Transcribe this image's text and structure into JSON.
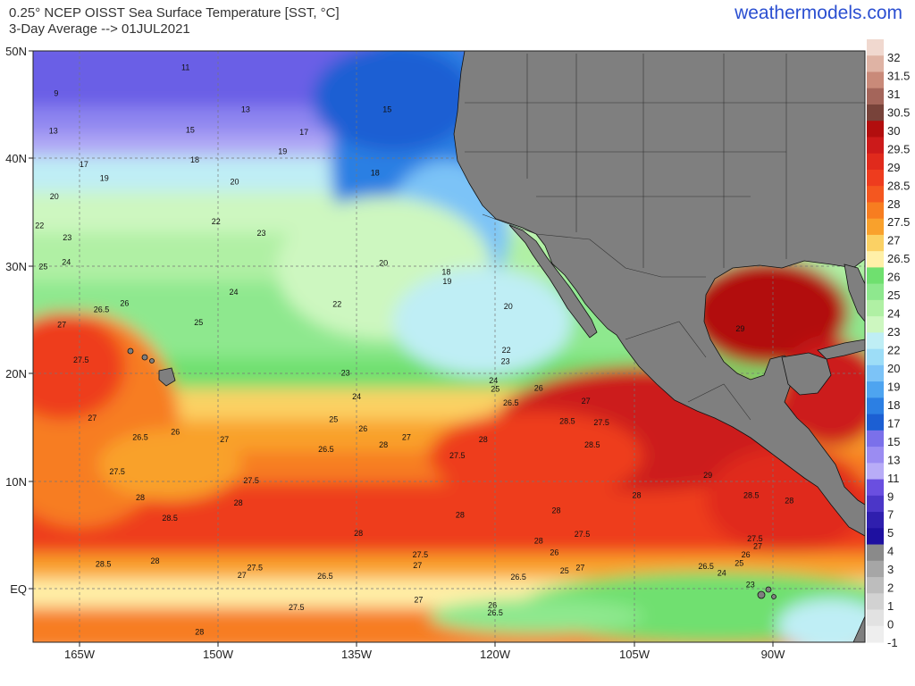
{
  "header": {
    "title_line1": "0.25° NCEP OISST Sea Surface Temperature [SST, °C]",
    "title_line2": "3-Day Average --> 01JUL2021",
    "site": "weathermodels.com"
  },
  "map": {
    "lat_labels": [
      "50N",
      "40N",
      "30N",
      "20N",
      "10N",
      "EQ"
    ],
    "lon_labels": [
      "165W",
      "150W",
      "135W",
      "120W",
      "105W",
      "90W"
    ],
    "land_color": "#7f7f7f",
    "contour_labels": [
      {
        "t": "11",
        "lon": -153.5,
        "lat": 48.2
      },
      {
        "t": "9",
        "lon": -167.5,
        "lat": 45.8
      },
      {
        "t": "13",
        "lon": -147,
        "lat": 44.3
      },
      {
        "t": "15",
        "lon": -131.7,
        "lat": 44.3
      },
      {
        "t": "13",
        "lon": -167.8,
        "lat": 42.3
      },
      {
        "t": "15",
        "lon": -153,
        "lat": 42.4
      },
      {
        "t": "17",
        "lon": -140.7,
        "lat": 42.2
      },
      {
        "t": "17",
        "lon": -164.5,
        "lat": 39.2
      },
      {
        "t": "18",
        "lon": -152.5,
        "lat": 39.6
      },
      {
        "t": "19",
        "lon": -143,
        "lat": 40.4
      },
      {
        "t": "19",
        "lon": -162.3,
        "lat": 37.9
      },
      {
        "t": "18",
        "lon": -133,
        "lat": 38.4
      },
      {
        "t": "20",
        "lon": -148.2,
        "lat": 37.6
      },
      {
        "t": "20",
        "lon": -167.7,
        "lat": 36.2
      },
      {
        "t": "22",
        "lon": -150.2,
        "lat": 33.9
      },
      {
        "t": "22",
        "lon": -169.3,
        "lat": 33.5
      },
      {
        "t": "23",
        "lon": -145.3,
        "lat": 32.8
      },
      {
        "t": "23",
        "lon": -166.3,
        "lat": 32.4
      },
      {
        "t": "25",
        "lon": -168.9,
        "lat": 29.7
      },
      {
        "t": "24",
        "lon": -166.4,
        "lat": 30.1
      },
      {
        "t": "20",
        "lon": -132.1,
        "lat": 30
      },
      {
        "t": "18",
        "lon": -125.3,
        "lat": 29.2
      },
      {
        "t": "19",
        "lon": -125.2,
        "lat": 28.3
      },
      {
        "t": "24",
        "lon": -148.3,
        "lat": 27.3
      },
      {
        "t": "26",
        "lon": -160.1,
        "lat": 26.3
      },
      {
        "t": "22",
        "lon": -137.1,
        "lat": 26.2
      },
      {
        "t": "20",
        "lon": -118.6,
        "lat": 26
      },
      {
        "t": "26.5",
        "lon": -162.6,
        "lat": 25.7
      },
      {
        "t": "25",
        "lon": -152.1,
        "lat": 24.5
      },
      {
        "t": "27",
        "lon": -166.9,
        "lat": 24.3
      },
      {
        "t": "22",
        "lon": -118.8,
        "lat": 21.9
      },
      {
        "t": "23",
        "lon": -118.9,
        "lat": 20.9
      },
      {
        "t": "27.5",
        "lon": -164.8,
        "lat": 21
      },
      {
        "t": "23",
        "lon": -136.2,
        "lat": 19.8
      },
      {
        "t": "24",
        "lon": -120.2,
        "lat": 19.1
      },
      {
        "t": "25",
        "lon": -120,
        "lat": 18.3
      },
      {
        "t": "26",
        "lon": -115.3,
        "lat": 18.4
      },
      {
        "t": "24",
        "lon": -135,
        "lat": 17.6
      },
      {
        "t": "26.5",
        "lon": -118.3,
        "lat": 17
      },
      {
        "t": "27",
        "lon": -110.2,
        "lat": 17.2
      },
      {
        "t": "27",
        "lon": -163.6,
        "lat": 15.6
      },
      {
        "t": "25",
        "lon": -137.5,
        "lat": 15.5
      },
      {
        "t": "28.5",
        "lon": -112.2,
        "lat": 15.3
      },
      {
        "t": "27.5",
        "lon": -108.5,
        "lat": 15.2
      },
      {
        "t": "26",
        "lon": -134.3,
        "lat": 14.6
      },
      {
        "t": "26",
        "lon": -154.6,
        "lat": 14.3
      },
      {
        "t": "26.5",
        "lon": -158.4,
        "lat": 13.8
      },
      {
        "t": "27",
        "lon": -149.3,
        "lat": 13.6
      },
      {
        "t": "27",
        "lon": -129.6,
        "lat": 13.8
      },
      {
        "t": "28",
        "lon": -121.3,
        "lat": 13.6
      },
      {
        "t": "28",
        "lon": -132.1,
        "lat": 13.1
      },
      {
        "t": "28.5",
        "lon": -109.5,
        "lat": 13.1
      },
      {
        "t": "26.5",
        "lon": -138.3,
        "lat": 12.7
      },
      {
        "t": "27.5",
        "lon": -124.1,
        "lat": 12.1
      },
      {
        "t": "27.5",
        "lon": -160.9,
        "lat": 10.6
      },
      {
        "t": "27.5",
        "lon": -146.4,
        "lat": 9.8
      },
      {
        "t": "29",
        "lon": -97,
        "lat": 10.3
      },
      {
        "t": "28",
        "lon": -158.4,
        "lat": 8.2
      },
      {
        "t": "28.5",
        "lon": -92.3,
        "lat": 8.4
      },
      {
        "t": "28",
        "lon": -104.7,
        "lat": 8.4
      },
      {
        "t": "28",
        "lon": -147.8,
        "lat": 7.7
      },
      {
        "t": "28",
        "lon": -113.4,
        "lat": 7
      },
      {
        "t": "28",
        "lon": -123.8,
        "lat": 6.6
      },
      {
        "t": "28.5",
        "lon": -155.2,
        "lat": 6.3
      },
      {
        "t": "28",
        "lon": -88.2,
        "lat": 7.9
      },
      {
        "t": "27.5",
        "lon": -110.6,
        "lat": 4.8
      },
      {
        "t": "28",
        "lon": -134.8,
        "lat": 4.9
      },
      {
        "t": "28",
        "lon": -115.3,
        "lat": 4.2
      },
      {
        "t": "27.5",
        "lon": -91.9,
        "lat": 4.4
      },
      {
        "t": "27",
        "lon": -91.6,
        "lat": 3.7
      },
      {
        "t": "26",
        "lon": -113.6,
        "lat": 3.1
      },
      {
        "t": "26",
        "lon": -92.9,
        "lat": 2.9
      },
      {
        "t": "28.5",
        "lon": -162.4,
        "lat": 2
      },
      {
        "t": "28",
        "lon": -156.8,
        "lat": 2.3
      },
      {
        "t": "27.5",
        "lon": -128.1,
        "lat": 2.9
      },
      {
        "t": "27",
        "lon": -128.4,
        "lat": 1.9
      },
      {
        "t": "25",
        "lon": -112.5,
        "lat": 1.4
      },
      {
        "t": "27",
        "lon": -110.8,
        "lat": 1.7
      },
      {
        "t": "26.5",
        "lon": -97.2,
        "lat": 1.8
      },
      {
        "t": "25",
        "lon": -93.6,
        "lat": 2.1
      },
      {
        "t": "27.5",
        "lon": -146,
        "lat": 1.7
      },
      {
        "t": "27",
        "lon": -147.4,
        "lat": 1
      },
      {
        "t": "26.5",
        "lon": -138.4,
        "lat": 0.9
      },
      {
        "t": "26.5",
        "lon": -117.5,
        "lat": 0.8
      },
      {
        "t": "24",
        "lon": -95.5,
        "lat": 1.2
      },
      {
        "t": "23",
        "lon": -92.4,
        "lat": 0.1
      },
      {
        "t": "27",
        "lon": -128.3,
        "lat": -1.3
      },
      {
        "t": "27.5",
        "lon": -141.5,
        "lat": -2
      },
      {
        "t": "26",
        "lon": -120.3,
        "lat": -1.8
      },
      {
        "t": "26.5",
        "lon": -120,
        "lat": -2.5
      },
      {
        "t": "29",
        "lon": -93.5,
        "lat": 23.9
      },
      {
        "t": "28",
        "lon": -152,
        "lat": -4.3
      }
    ]
  },
  "colorbar": {
    "ticks": [
      "32",
      "31.5",
      "31",
      "30.5",
      "30",
      "29.5",
      "29",
      "28.5",
      "28",
      "27.5",
      "27",
      "26.5",
      "26",
      "25",
      "24",
      "23",
      "22",
      "20",
      "19",
      "18",
      "17",
      "15",
      "13",
      "11",
      "9",
      "7",
      "5",
      "4",
      "3",
      "2",
      "1",
      "0",
      "-1"
    ],
    "colors": [
      "#f0d8cf",
      "#dfb3a4",
      "#c98a79",
      "#a4655a",
      "#78433a",
      "#b20e0e",
      "#cc1a1a",
      "#e02a1c",
      "#ee3c1e",
      "#f4571f",
      "#f77d20",
      "#f9a12c",
      "#fbd164",
      "#fff0a8",
      "#6fe06f",
      "#8ee88e",
      "#b0f0a4",
      "#cdf7c0",
      "#bfeef5",
      "#9dddf7",
      "#7cc3f7",
      "#4ea4f0",
      "#2c7fe3",
      "#1c5fd3",
      "#7b70ea",
      "#9b8cf2",
      "#b8acf7",
      "#6a4fe0",
      "#4b36c8",
      "#2f1fae",
      "#1e10a0",
      "#8a8a8a",
      "#a6a6a6",
      "#bdbdbd",
      "#d2d2d2",
      "#e2e2e2",
      "#eeeeee"
    ]
  }
}
